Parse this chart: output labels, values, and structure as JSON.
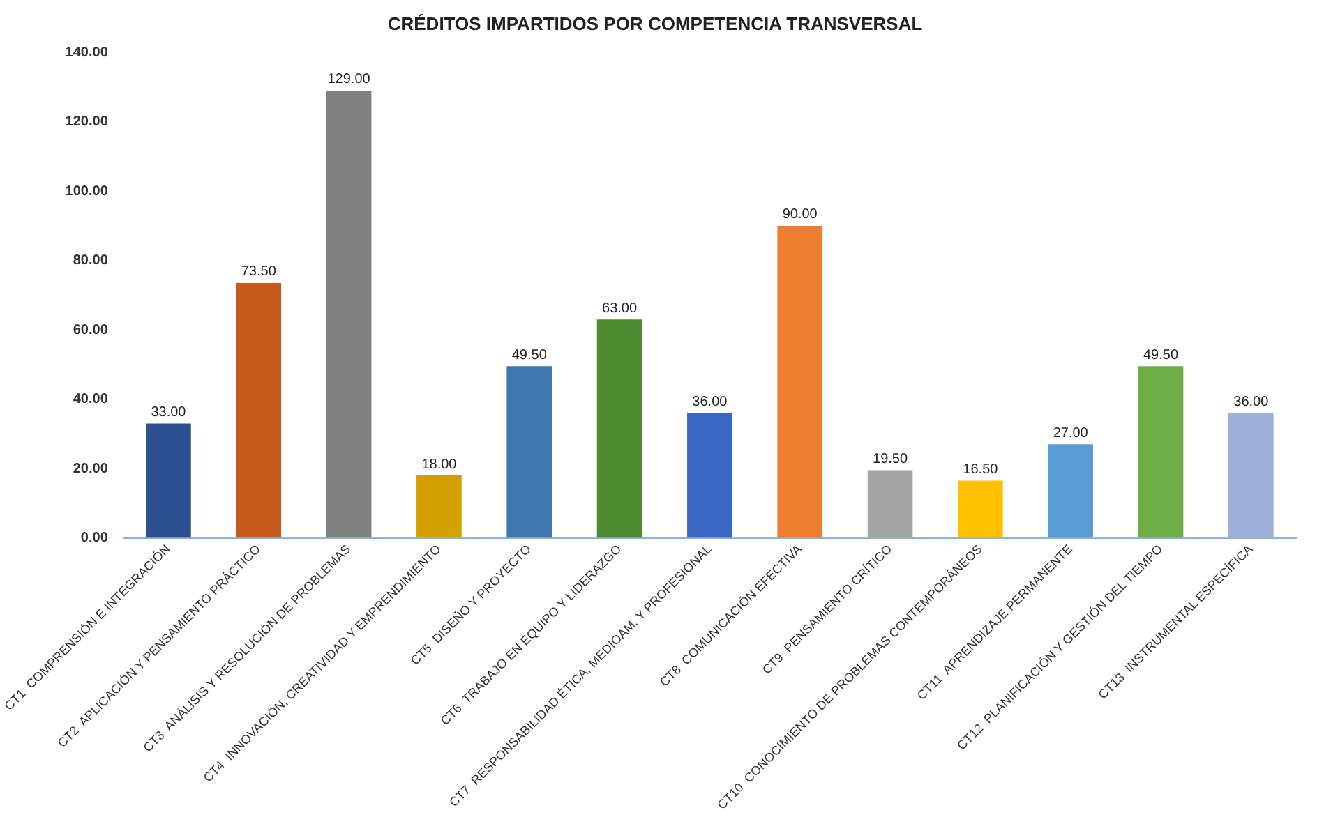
{
  "chart_data": {
    "type": "bar",
    "title": "CRÉDITOS IMPARTIDOS POR COMPETENCIA TRANSVERSAL",
    "categories": [
      "CT1  COMPRENSIÓN E INTEGRACIÓN",
      "CT2  APLICACIÓN Y PENSAMIENTO PRÁCTICO",
      "CT3  ANÁLISIS Y RESOLUCIÓN DE PROBLEMAS",
      "CT4  INNOVACIÓN, CREATIVIDAD Y EMPRENDIMIENTO",
      "CT5  DISEÑO Y PROYECTO",
      "CT6  TRABAJO EN EQUIPO Y LIDERAZGO",
      "CT7  RESPONSABILIDAD ÉTICA, MEDIOAM. Y PROFESIONAL",
      "CT8  COMUNICACIÓN EFECTIVA",
      "CT9  PENSAMIENTO CRÍTICO",
      "CT10  CONOCIMIENTO DE PROBLEMAS CONTEMPORÁNEOS",
      "CT11  APRENDIZAJE PERMANENTE",
      "CT12  PLANIFICACIÓN Y GESTIÓN DEL TIEMPO",
      "CT13  INSTRUMENTAL ESPECÍFICA"
    ],
    "values": [
      33,
      73.5,
      129,
      18,
      49.5,
      63,
      36,
      90,
      19.5,
      16.5,
      27,
      49.5,
      36
    ],
    "value_labels": [
      "33.00",
      "73.50",
      "129.00",
      "18.00",
      "49.50",
      "63.00",
      "36.00",
      "90.00",
      "19.50",
      "16.50",
      "27.00",
      "49.50",
      "36.00"
    ],
    "colors": [
      "#2e4f8f",
      "#c55a1c",
      "#808080",
      "#d4a000",
      "#3f78ad",
      "#4f8a30",
      "#3a66c4",
      "#ed7d31",
      "#a5a5a5",
      "#ffc000",
      "#5b9bd5",
      "#70ad47",
      "#9fb0d8"
    ],
    "ylim": [
      0,
      140
    ],
    "yticks": [
      {
        "value": 0,
        "label": "0.00"
      },
      {
        "value": 20,
        "label": "20.00"
      },
      {
        "value": 40,
        "label": "40.00"
      },
      {
        "value": 60,
        "label": "60.00"
      },
      {
        "value": 80,
        "label": "80.00"
      },
      {
        "value": 100,
        "label": "100.00"
      },
      {
        "value": 120,
        "label": "120.00"
      },
      {
        "value": 140,
        "label": "140.00"
      }
    ],
    "grid": false,
    "legend": false
  }
}
